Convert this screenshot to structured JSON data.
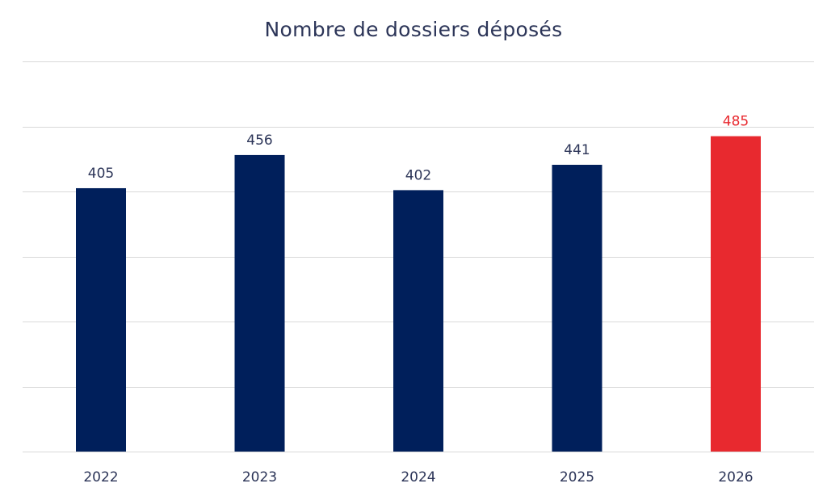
{
  "chart_data": {
    "type": "bar",
    "title": "Nombre de dossiers déposés",
    "categories": [
      "2022",
      "2023",
      "2024",
      "2025",
      "2026"
    ],
    "values": [
      405,
      456,
      402,
      441,
      485
    ],
    "data_labels": [
      "405",
      "456",
      "402",
      "441",
      "485"
    ],
    "highlight_index": 4,
    "ylim": [
      0,
      600
    ],
    "y_gridlines": [
      0,
      100,
      200,
      300,
      400,
      500,
      600
    ],
    "grid": true,
    "legend": "none",
    "xlabel": "",
    "ylabel": ""
  },
  "colors": {
    "bar": "#001F5B",
    "highlight_bar": "#E8292F",
    "label_text": "#2C3558",
    "highlight_label_text": "#E8292F",
    "grid": "#D9D9D9",
    "title_text": "#2C3558"
  }
}
